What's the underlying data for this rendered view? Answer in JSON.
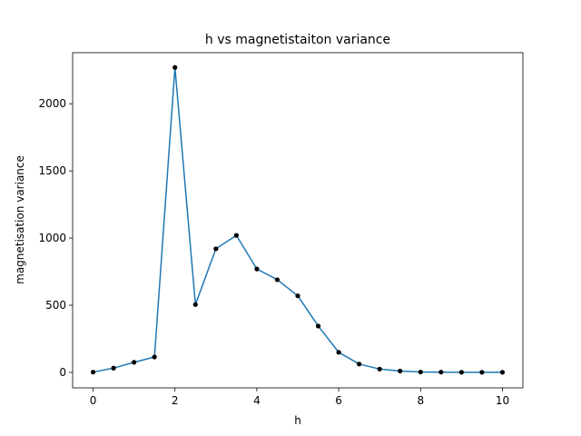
{
  "chart_data": {
    "type": "line",
    "title": "h vs magnetistaiton variance",
    "xlabel": "h",
    "ylabel": "magnetisation variance",
    "xlim": [
      -0.5,
      10.5
    ],
    "ylim": [
      -115,
      2380
    ],
    "xticks": [
      0,
      2,
      4,
      6,
      8,
      10
    ],
    "yticks": [
      0,
      500,
      1000,
      1500,
      2000
    ],
    "grid": false,
    "series": [
      {
        "x": [
          0,
          0.5,
          1,
          1.5,
          2,
          2.5,
          3,
          3.5,
          4,
          4.5,
          5,
          5.5,
          6,
          6.5,
          7,
          7.5,
          8,
          8.5,
          9,
          9.5,
          10
        ],
        "y": [
          2,
          32,
          75,
          115,
          2270,
          505,
          920,
          1020,
          770,
          690,
          570,
          345,
          150,
          62,
          25,
          10,
          3,
          2,
          1,
          1,
          1
        ],
        "color": "#1f77b4",
        "marker_color": "#000000"
      }
    ]
  }
}
